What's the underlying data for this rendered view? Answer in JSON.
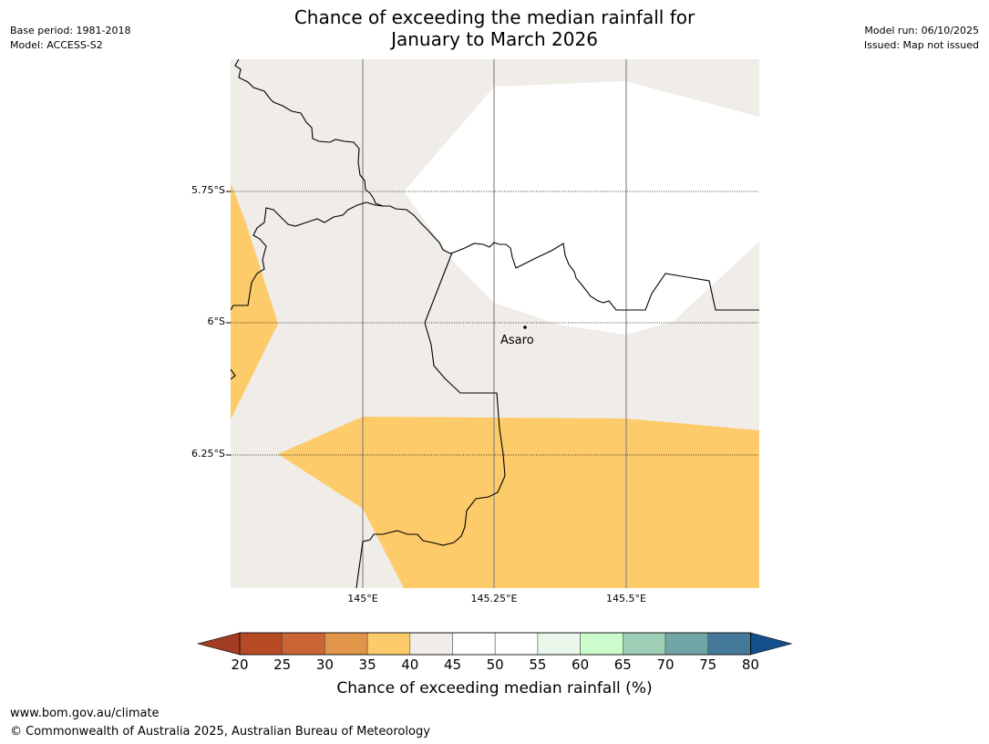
{
  "title": {
    "line1": "Chance of exceeding the median rainfall for",
    "line2": "January to March 2026"
  },
  "meta_left": {
    "base_period": "Base period: 1981-2018",
    "model": "Model: ACCESS-S2"
  },
  "meta_right": {
    "model_run": "Model run: 06/10/2025",
    "issued": "Issued: Map not issued"
  },
  "latitude_labels": [
    "5.75°S",
    "6°S",
    "6.25°S"
  ],
  "longitude_labels": [
    "145°E",
    "145.25°E",
    "145.5°E"
  ],
  "place": {
    "name": "Asaro"
  },
  "colorbar": {
    "ticks": [
      "20",
      "25",
      "30",
      "35",
      "40",
      "45",
      "50",
      "55",
      "60",
      "65",
      "70",
      "75",
      "80"
    ],
    "colors": [
      "#a23c22",
      "#b54a25",
      "#cd6433",
      "#e19548",
      "#fdcb69",
      "#f0ece7",
      "#ffffff",
      "#ffffff",
      "#eaf7ea",
      "#ccfccc",
      "#9ed0b8",
      "#70a6a6",
      "#44799a",
      "#16508a"
    ],
    "title": "Chance of exceeding median rainfall (%)"
  },
  "legend_colors": {
    "band_35_40": "#fdcb69",
    "band_40_45": "#f0ece7",
    "band_45_55": "#ffffff"
  },
  "footer": {
    "url": "www.bom.gov.au/climate",
    "copyright": "© Commonwealth of Australia 2025, Australian Bureau of Meteorology"
  }
}
